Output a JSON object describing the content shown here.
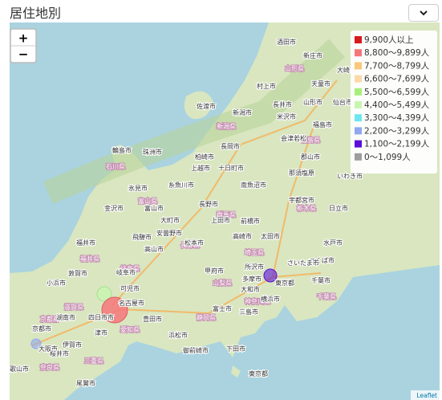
{
  "header": {
    "title": "居住地別"
  },
  "map": {
    "zoom_in": "+",
    "zoom_out": "−",
    "legend": [
      {
        "label": "9,900人以上",
        "color": "#d7191c"
      },
      {
        "label": "8,800〜9,899人",
        "color": "#f4777b"
      },
      {
        "label": "7,700〜8,799人",
        "color": "#f9c87a"
      },
      {
        "label": "6,600〜7,699人",
        "color": "#fbd9a8"
      },
      {
        "label": "5,500〜6,599人",
        "color": "#a6f07a"
      },
      {
        "label": "4,400〜5,499人",
        "color": "#c8f5b0"
      },
      {
        "label": "3,300〜4,399人",
        "color": "#6ee6f0"
      },
      {
        "label": "2,200〜3,299人",
        "color": "#8fa8f0"
      },
      {
        "label": "1,100〜2,199人",
        "color": "#5a10d8"
      },
      {
        "label": "0〜1,099人",
        "color": "#9e9e9e"
      }
    ],
    "cities": [
      "新潟市",
      "長岡市",
      "佐渡市",
      "上越市",
      "十日町市",
      "柏崎市",
      "南魚沼市",
      "長野市",
      "松本市",
      "上田市",
      "大町市",
      "安曇野市",
      "富山市",
      "金沢市",
      "輪島市",
      "珠洲市",
      "氷見市",
      "糸魚川市",
      "福井市",
      "高山市",
      "飛騨市",
      "岐阜市",
      "可児市",
      "名古屋市",
      "豊田市",
      "津市",
      "浜松市",
      "三島市",
      "富士市",
      "下田市",
      "御前崎市",
      "甲府市",
      "前橋市",
      "高崎市",
      "太田市",
      "宇都宮市",
      "水戸市",
      "つくば市",
      "さいたま市",
      "東京都",
      "千葉市",
      "横浜市",
      "所沢市",
      "多摩市",
      "大和市",
      "福島市",
      "郡山市",
      "会津若松",
      "いわき市",
      "日立市",
      "山形市",
      "仙台市",
      "米沢市",
      "長井市",
      "村上市",
      "酒田市",
      "新庄市",
      "天童市",
      "大崎市",
      "那須塩原",
      "京都市",
      "大阪市",
      "伊賀市",
      "四日市市",
      "東京都",
      "尾鷲市",
      "歌山市",
      "敦賀市",
      "小浜市",
      "湖南市",
      "桜井市"
    ],
    "prefectures": [
      "新潟県",
      "群馬県",
      "栃木県",
      "埼玉県",
      "山梨県",
      "静岡県",
      "愛知県",
      "岐阜県",
      "富山県",
      "石川県",
      "福井県",
      "滋賀県",
      "三重県",
      "神奈川県",
      "千葉県",
      "福島県",
      "山形県",
      "京都府",
      "奈良県",
      "長野県"
    ],
    "attribution": "Leaflet"
  }
}
